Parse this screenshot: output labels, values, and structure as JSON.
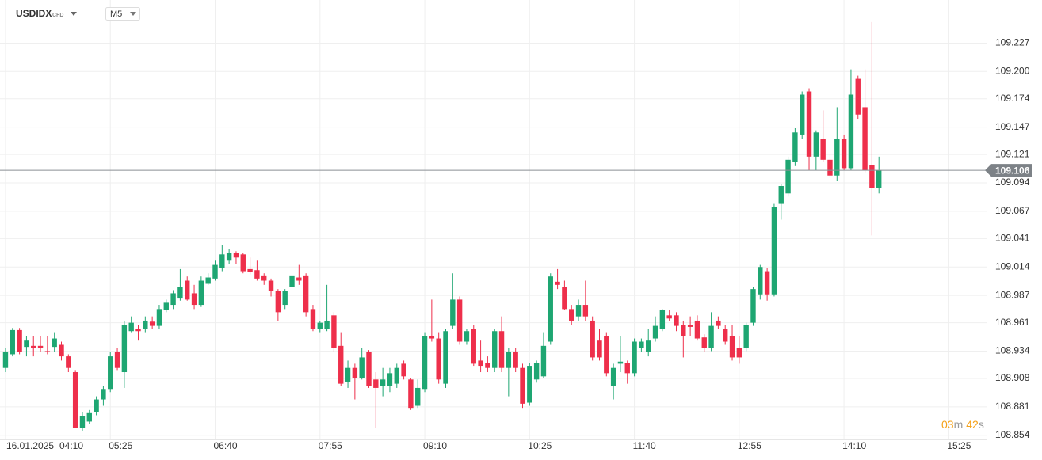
{
  "chart_data": {
    "type": "candlestick",
    "symbol": "USDIDX",
    "instrument_type": "CFD",
    "timeframe": "M5",
    "date_label": "16.01.2025",
    "up_color": "#1ea672",
    "down_color": "#ee2f4b",
    "grid": true,
    "xlim": [
      -0.79,
      140.4
    ],
    "xticks": [
      {
        "value": 0,
        "label": "04:10"
      },
      {
        "value": 15,
        "label": "05:25"
      },
      {
        "value": 30,
        "label": "06:40"
      },
      {
        "value": 45,
        "label": "07:55"
      },
      {
        "value": 60,
        "label": "09:10"
      },
      {
        "value": 75,
        "label": "10:25"
      },
      {
        "value": 90,
        "label": "11:40"
      },
      {
        "value": 105,
        "label": "12:55"
      },
      {
        "value": 120,
        "label": "14:10"
      },
      {
        "value": 135,
        "label": "15:25"
      }
    ],
    "ylim": [
      108.85,
      109.268
    ],
    "yticks": [
      108.854,
      108.881,
      108.908,
      108.934,
      108.961,
      108.987,
      109.014,
      109.041,
      109.067,
      109.094,
      109.121,
      109.147,
      109.174,
      {
        "value": 109.2,
        "label": "109.200"
      },
      109.227
    ],
    "last_price": 109.106,
    "countdown": {
      "minutes": "03",
      "minutes_unit": "m",
      "seconds": "42",
      "seconds_unit": "s"
    },
    "open": [
      108.918,
      108.931,
      108.954,
      108.938,
      108.939,
      108.939,
      108.934,
      108.938,
      108.94,
      108.929,
      108.914,
      108.861,
      108.867,
      108.876,
      108.888,
      108.898,
      108.933,
      108.914,
      108.953,
      108.955,
      108.955,
      108.962,
      108.958,
      108.973,
      108.978,
      108.984,
      109.001,
      108.989,
      108.978,
      108.998,
      109.003,
      109.013,
      109.02,
      109.027,
      109.026,
      109.012,
      109.011,
      109.006,
      109.001,
      108.991,
      108.978,
      108.995,
      109.004,
      109.006,
      108.974,
      108.955,
      108.955,
      108.968,
      108.939,
      108.905,
      108.918,
      108.908,
      108.933,
      108.907,
      108.901,
      108.901,
      108.903,
      108.922,
      108.907,
      108.882,
      108.898,
      108.948,
      108.946,
      108.903,
      108.958,
      108.983,
      108.943,
      108.955,
      108.925,
      108.923,
      108.918,
      108.953,
      108.918,
      108.933,
      108.918,
      108.885,
      108.907,
      108.91,
      108.943,
      109.0,
      108.995,
      108.974,
      108.967,
      108.978,
      108.963,
      108.944,
      108.948,
      108.901,
      108.922,
      108.923,
      108.913,
      108.937,
      108.933,
      108.946,
      108.955,
      108.968,
      108.968,
      108.959,
      108.959,
      108.963,
      108.947,
      108.937,
      108.963,
      108.955,
      108.948,
      108.937,
      108.937,
      108.961,
      108.988,
      109.01,
      108.988,
      109.074,
      109.084,
      109.114,
      109.14,
      109.181,
      109.119,
      109.136,
      109.116,
      109.101,
      109.136,
      109.108,
      109.193,
      109.166,
      109.111,
      109.089
    ],
    "high": [
      108.937,
      108.956,
      108.956,
      108.948,
      108.948,
      108.948,
      108.948,
      108.952,
      108.943,
      108.931,
      108.916,
      108.876,
      108.878,
      108.891,
      108.901,
      108.933,
      108.937,
      108.963,
      108.967,
      108.959,
      108.967,
      108.967,
      108.978,
      108.983,
      108.992,
      109.012,
      109.005,
      108.997,
      109.005,
      109.008,
      109.02,
      109.035,
      109.031,
      109.029,
      109.027,
      109.023,
      109.02,
      109.008,
      109.003,
      108.993,
      108.993,
      109.026,
      109.016,
      109.008,
      108.978,
      108.963,
      108.997,
      108.971,
      108.952,
      108.925,
      108.922,
      108.937,
      108.935,
      108.914,
      108.918,
      108.918,
      108.922,
      108.925,
      108.908,
      108.907,
      108.952,
      108.983,
      108.952,
      108.955,
      109.008,
      108.986,
      108.955,
      108.959,
      108.944,
      108.929,
      108.955,
      108.967,
      108.937,
      108.937,
      108.922,
      108.923,
      108.925,
      108.952,
      109.008,
      109.012,
      109.001,
      108.978,
      108.983,
      109.001,
      108.967,
      108.955,
      108.952,
      108.922,
      108.948,
      108.925,
      108.946,
      108.946,
      108.955,
      108.967,
      108.974,
      108.973,
      108.971,
      108.963,
      108.967,
      108.968,
      108.95,
      108.971,
      108.967,
      108.959,
      108.959,
      108.948,
      108.961,
      108.995,
      109.016,
      109.013,
      109.074,
      109.093,
      109.119,
      109.146,
      109.181,
      109.184,
      109.144,
      109.163,
      109.121,
      109.166,
      109.14,
      109.202,
      109.196,
      109.202,
      109.247,
      109.119
    ],
    "low": [
      108.914,
      108.929,
      108.931,
      108.929,
      108.929,
      108.933,
      108.931,
      108.933,
      108.925,
      108.914,
      108.861,
      108.858,
      108.865,
      108.873,
      108.882,
      108.895,
      108.916,
      108.899,
      108.952,
      108.944,
      108.952,
      108.955,
      108.955,
      108.971,
      108.974,
      108.982,
      108.982,
      108.974,
      108.976,
      108.997,
      109.001,
      109.01,
      109.017,
      109.017,
      109.008,
      109.007,
      109.001,
      108.997,
      108.986,
      108.963,
      108.974,
      108.993,
      108.997,
      108.967,
      108.953,
      108.952,
      108.953,
      108.933,
      108.901,
      108.899,
      108.888,
      108.907,
      108.899,
      108.861,
      108.891,
      108.895,
      108.899,
      108.907,
      108.878,
      108.88,
      108.895,
      108.943,
      108.903,
      108.899,
      108.955,
      108.94,
      108.94,
      108.92,
      108.914,
      108.914,
      108.914,
      108.914,
      108.891,
      108.914,
      108.88,
      108.882,
      108.904,
      108.908,
      108.94,
      108.993,
      108.973,
      108.959,
      108.963,
      108.963,
      108.925,
      108.925,
      108.91,
      108.888,
      108.914,
      108.903,
      108.91,
      108.933,
      108.929,
      108.943,
      108.953,
      108.963,
      108.953,
      108.928,
      108.948,
      108.944,
      108.933,
      108.934,
      108.955,
      108.94,
      108.925,
      108.922,
      108.934,
      108.958,
      108.983,
      108.982,
      108.986,
      109.059,
      109.081,
      109.11,
      109.136,
      109.106,
      109.106,
      109.114,
      109.099,
      109.096,
      109.106,
      109.106,
      109.155,
      109.104,
      109.044,
      109.084
    ],
    "close": [
      108.933,
      108.954,
      108.933,
      108.944,
      108.937,
      108.937,
      108.933,
      108.946,
      108.929,
      108.918,
      108.861,
      108.872,
      108.875,
      108.888,
      108.898,
      108.929,
      108.918,
      108.959,
      108.961,
      108.953,
      108.963,
      108.958,
      108.974,
      108.98,
      108.989,
      108.995,
      108.983,
      108.978,
      109.001,
      109.004,
      109.016,
      109.026,
      109.027,
      109.023,
      109.01,
      109.009,
      109.003,
      109.001,
      108.991,
      108.971,
      108.991,
      109.006,
      109.001,
      108.971,
      108.955,
      108.961,
      108.963,
      108.937,
      108.903,
      108.918,
      108.908,
      108.928,
      108.901,
      108.899,
      108.907,
      108.913,
      108.918,
      108.91,
      108.88,
      108.899,
      108.948,
      108.946,
      108.907,
      108.953,
      108.983,
      108.943,
      108.953,
      108.922,
      108.92,
      108.918,
      108.953,
      108.918,
      108.933,
      108.918,
      108.884,
      108.92,
      108.923,
      108.939,
      109.005,
      108.997,
      108.974,
      108.963,
      108.978,
      108.967,
      108.928,
      108.928,
      108.913,
      108.918,
      108.924,
      108.913,
      108.943,
      108.943,
      108.944,
      108.958,
      108.973,
      108.965,
      108.958,
      108.948,
      108.957,
      108.946,
      108.937,
      108.958,
      108.958,
      108.943,
      108.928,
      108.928,
      108.959,
      108.993,
      109.014,
      108.988,
      109.071,
      109.091,
      109.116,
      109.142,
      109.178,
      109.119,
      109.142,
      109.116,
      109.101,
      109.136,
      109.108,
      109.178,
      109.159,
      109.106,
      109.089,
      109.106
    ]
  }
}
